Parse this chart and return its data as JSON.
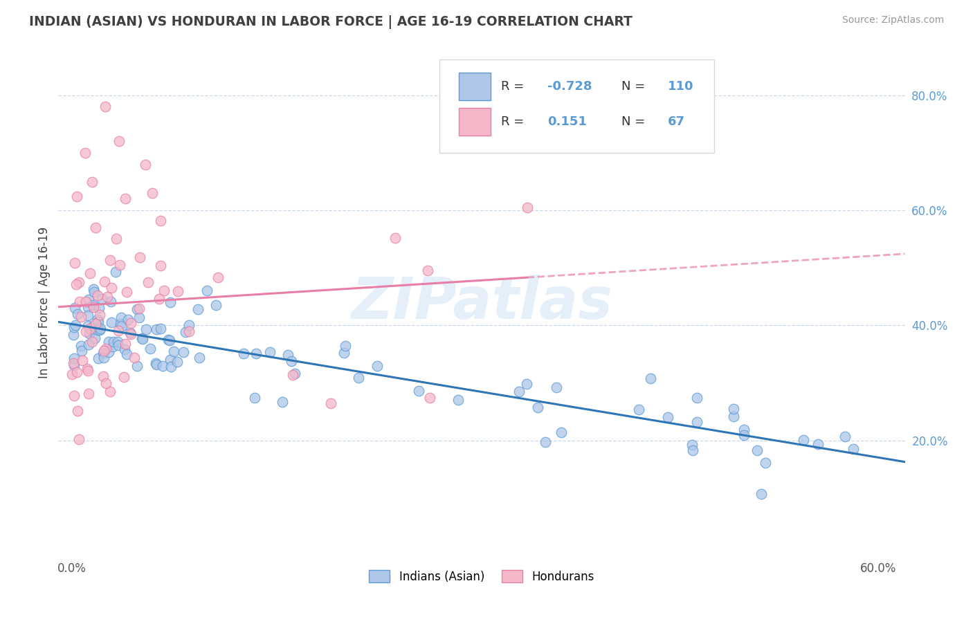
{
  "title": "INDIAN (ASIAN) VS HONDURAN IN LABOR FORCE | AGE 16-19 CORRELATION CHART",
  "source": "Source: ZipAtlas.com",
  "ylabel": "In Labor Force | Age 16-19",
  "xlim": [
    -0.01,
    0.62
  ],
  "ylim": [
    0.0,
    0.88
  ],
  "x_ticks": [
    0.0,
    0.6
  ],
  "x_tick_labels": [
    "0.0%",
    "60.0%"
  ],
  "y_ticks_right": [
    0.2,
    0.4,
    0.6,
    0.8
  ],
  "y_tick_labels_right": [
    "20.0%",
    "40.0%",
    "60.0%",
    "80.0%"
  ],
  "indian_color": "#aec6e8",
  "honduran_color": "#f4b8c8",
  "indian_edge": "#5b9bd5",
  "honduran_edge": "#e87da8",
  "trend_indian_color": "#2e75b6",
  "trend_honduran_color": "#e87da8",
  "r_indian": -0.728,
  "n_indian": 110,
  "r_honduran": 0.151,
  "n_honduran": 67,
  "watermark": "ZIPatlas",
  "legend_items": [
    "Indians (Asian)",
    "Hondurans"
  ],
  "background_color": "#ffffff",
  "grid_color": "#c8d8e8",
  "title_color": "#404040",
  "right_axis_color": "#5b9bd5"
}
